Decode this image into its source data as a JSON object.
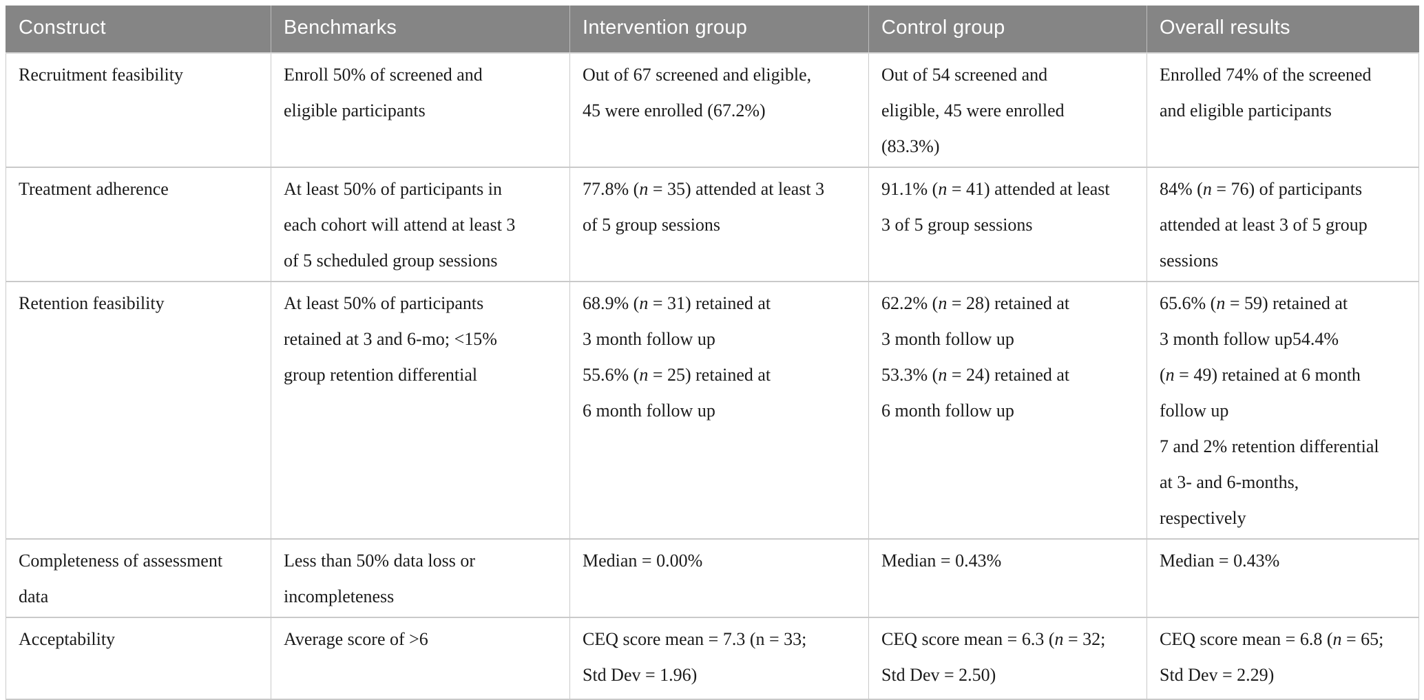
{
  "colors": {
    "header_bg": "#858585",
    "header_text": "#ffffff",
    "body_text": "#1b1b1b",
    "grid_line": "#c9c9c9"
  },
  "table": {
    "columns": [
      {
        "key": "construct",
        "label": "Construct"
      },
      {
        "key": "benchmarks",
        "label": "Benchmarks"
      },
      {
        "key": "intervention",
        "label": "Intervention group"
      },
      {
        "key": "control",
        "label": "Control group"
      },
      {
        "key": "overall",
        "label": "Overall results"
      }
    ],
    "rows": [
      {
        "construct": [
          "Recruitment feasibility"
        ],
        "benchmarks": [
          "Enroll 50% of screened and",
          "eligible participants"
        ],
        "intervention": [
          "Out of 67 screened and eligible,",
          "45 were enrolled (67.2%)"
        ],
        "control": [
          "Out of 54 screened and",
          "eligible, 45 were enrolled",
          "(83.3%)"
        ],
        "overall": [
          "Enrolled 74% of the screened",
          "and eligible participants"
        ]
      },
      {
        "construct": [
          "Treatment adherence"
        ],
        "benchmarks": [
          "At least 50% of participants in",
          "each cohort will attend at least 3",
          "of 5 scheduled group sessions"
        ],
        "intervention": [
          [
            {
              "t": "77.8% ("
            },
            {
              "t": "n",
              "i": true
            },
            {
              "t": " = 35) attended at least 3"
            }
          ],
          "of 5 group sessions"
        ],
        "control": [
          [
            {
              "t": "91.1% ("
            },
            {
              "t": "n",
              "i": true
            },
            {
              "t": " = 41) attended at least"
            }
          ],
          "3 of 5 group sessions"
        ],
        "overall": [
          [
            {
              "t": "84% ("
            },
            {
              "t": "n",
              "i": true
            },
            {
              "t": " = 76) of participants"
            }
          ],
          "attended at least 3 of 5 group",
          "sessions"
        ]
      },
      {
        "construct": [
          "Retention feasibility"
        ],
        "benchmarks": [
          "At least 50% of participants",
          "retained at 3 and 6-mo; <15%",
          "group retention differential"
        ],
        "intervention": [
          [
            {
              "t": "68.9% ("
            },
            {
              "t": "n",
              "i": true
            },
            {
              "t": " = 31) retained at"
            }
          ],
          "3 month follow up",
          [
            {
              "t": "55.6% ("
            },
            {
              "t": "n",
              "i": true
            },
            {
              "t": " = 25) retained at"
            }
          ],
          "6 month follow up"
        ],
        "control": [
          [
            {
              "t": "62.2% ("
            },
            {
              "t": "n",
              "i": true
            },
            {
              "t": " = 28) retained at"
            }
          ],
          "3 month follow up",
          [
            {
              "t": "53.3% ("
            },
            {
              "t": "n",
              "i": true
            },
            {
              "t": " = 24) retained at"
            }
          ],
          "6 month follow up"
        ],
        "overall": [
          [
            {
              "t": "65.6% ("
            },
            {
              "t": "n",
              "i": true
            },
            {
              "t": " = 59) retained at"
            }
          ],
          "3 month follow up54.4%",
          [
            {
              "t": "("
            },
            {
              "t": "n",
              "i": true
            },
            {
              "t": " = 49) retained at 6 month"
            }
          ],
          "follow up",
          "7 and 2% retention differential",
          "at 3- and 6-months,",
          "respectively"
        ]
      },
      {
        "construct": [
          "Completeness of assessment",
          "data"
        ],
        "benchmarks": [
          "Less than 50% data loss or",
          "incompleteness"
        ],
        "intervention": [
          "Median = 0.00%"
        ],
        "control": [
          "Median = 0.43%"
        ],
        "overall": [
          "Median = 0.43%"
        ]
      },
      {
        "construct": [
          "Acceptability"
        ],
        "benchmarks": [
          "Average score of >6"
        ],
        "intervention": [
          "CEQ score mean = 7.3 (n = 33;",
          "Std Dev = 1.96)"
        ],
        "control": [
          [
            {
              "t": "CEQ score mean = 6.3 ("
            },
            {
              "t": "n",
              "i": true
            },
            {
              "t": " = 32;"
            }
          ],
          "Std Dev = 2.50)"
        ],
        "overall": [
          [
            {
              "t": "CEQ score mean = 6.8 ("
            },
            {
              "t": "n",
              "i": true
            },
            {
              "t": " = 65;"
            }
          ],
          "Std Dev = 2.29)"
        ]
      }
    ]
  }
}
